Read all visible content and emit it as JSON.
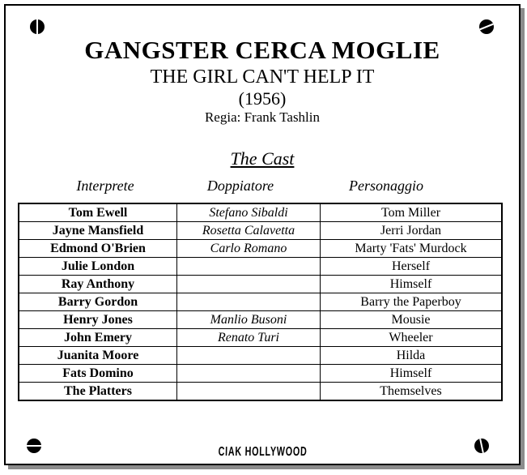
{
  "page": {
    "title_it": "GANGSTER CERCA MOGLIE",
    "title_en": "THE GIRL CAN'T HELP IT",
    "year": "(1956)",
    "director": "Regia: Frank Tashlin",
    "section_heading": "The Cast",
    "footer_logo": "CIAK HOLLYWOOD"
  },
  "cast_table": {
    "columns": [
      "Interprete",
      "Doppiatore",
      "Personaggio"
    ],
    "rows": [
      [
        "Tom Ewell",
        "Stefano Sibaldi",
        "Tom Miller"
      ],
      [
        "Jayne Mansfield",
        "Rosetta Calavetta",
        "Jerri Jordan"
      ],
      [
        "Edmond O'Brien",
        "Carlo Romano",
        "Marty 'Fats' Murdock"
      ],
      [
        "Julie London",
        "",
        "Herself"
      ],
      [
        "Ray Anthony",
        "",
        "Himself"
      ],
      [
        "Barry Gordon",
        "",
        "Barry the Paperboy"
      ],
      [
        "Henry Jones",
        "Manlio Busoni",
        "Mousie"
      ],
      [
        "John Emery",
        "Renato Turi",
        "Wheeler"
      ],
      [
        "Juanita Moore",
        "",
        "Hilda"
      ],
      [
        "Fats Domino",
        "",
        "Himself"
      ],
      [
        "The Platters",
        "",
        "Themselves"
      ]
    ]
  },
  "colors": {
    "text": "#000000",
    "background": "#ffffff",
    "plaque_border": "#000000",
    "shadow": "#8c8c8c"
  }
}
